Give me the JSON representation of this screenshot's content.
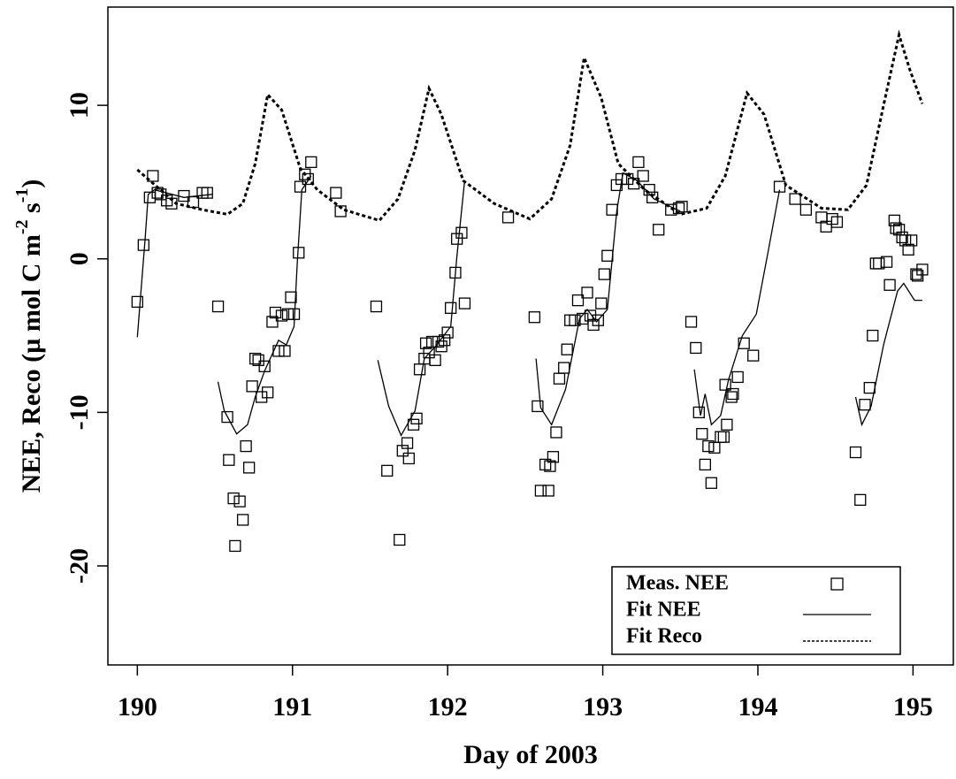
{
  "chart_data": {
    "type": "line",
    "xlabel": "Day of 2003",
    "ylabel": [
      "NEE, Reco (µ mol C m",
      "-2",
      " s",
      "-1",
      ")"
    ],
    "xlim": [
      189.81,
      195.26
    ],
    "ylim": [
      -26.45,
      16.4
    ],
    "xticks": [
      190,
      191,
      192,
      193,
      194,
      195
    ],
    "yticks": [
      -20,
      -10,
      0,
      10
    ],
    "legend": "bottom-right",
    "series": [
      {
        "name": "Meas. NEE",
        "mark": "square",
        "color": "#000000",
        "x": [
          190.0,
          190.04,
          190.08,
          190.1,
          190.13,
          190.15,
          190.19,
          190.22,
          190.3,
          190.36,
          190.42,
          190.45,
          190.52,
          190.58,
          190.59,
          190.62,
          190.63,
          190.66,
          190.68,
          190.7,
          190.72,
          190.74,
          190.76,
          190.78,
          190.8,
          190.82,
          190.84,
          190.87,
          190.89,
          190.91,
          190.93,
          190.95,
          190.97,
          190.99,
          191.01,
          191.04,
          191.05,
          191.08,
          191.1,
          191.12,
          191.28,
          191.31,
          191.54,
          191.61,
          191.69,
          191.71,
          191.74,
          191.75,
          191.78,
          191.8,
          191.82,
          191.85,
          191.86,
          191.88,
          191.9,
          191.92,
          191.94,
          191.96,
          191.98,
          192.0,
          192.02,
          192.05,
          192.06,
          192.09,
          192.11,
          192.39,
          192.56,
          192.58,
          192.6,
          192.63,
          192.65,
          192.66,
          192.68,
          192.7,
          192.72,
          192.75,
          192.77,
          192.79,
          192.82,
          192.84,
          192.87,
          192.9,
          192.92,
          192.94,
          192.97,
          192.99,
          193.01,
          193.03,
          193.06,
          193.09,
          193.12,
          193.16,
          193.2,
          193.23,
          193.26,
          193.3,
          193.32,
          193.36,
          193.44,
          193.49,
          193.51,
          193.57,
          193.6,
          193.62,
          193.64,
          193.66,
          193.68,
          193.7,
          193.72,
          193.76,
          193.78,
          193.79,
          193.8,
          193.83,
          193.84,
          193.87,
          193.91,
          193.97,
          194.14,
          194.24,
          194.31,
          194.41,
          194.44,
          194.48,
          194.51,
          194.63,
          194.66,
          194.69,
          194.72,
          194.74,
          194.76,
          194.78,
          194.83,
          194.85,
          194.88,
          194.89,
          194.91,
          194.93,
          194.95,
          194.97,
          194.99,
          195.02,
          195.03,
          195.06
        ],
        "values": [
          -2.8,
          0.9,
          4.0,
          5.4,
          4.3,
          4.2,
          3.8,
          3.6,
          4.1,
          3.7,
          4.3,
          4.3,
          -3.1,
          -10.3,
          -13.1,
          -15.6,
          -18.7,
          -15.8,
          -17.0,
          -12.2,
          -13.6,
          -8.3,
          -6.5,
          -6.6,
          -9.0,
          -7.0,
          -8.7,
          -4.1,
          -3.5,
          -6.0,
          -3.7,
          -6.0,
          -3.6,
          -2.5,
          -3.6,
          0.4,
          4.7,
          5.5,
          5.2,
          6.3,
          4.3,
          3.1,
          -3.1,
          -13.8,
          -18.3,
          -12.5,
          -12.0,
          -13.0,
          -10.8,
          -10.4,
          -7.2,
          -6.5,
          -5.5,
          -6.1,
          -5.4,
          -6.6,
          -5.4,
          -5.7,
          -5.3,
          -4.8,
          -3.2,
          -0.9,
          1.3,
          1.7,
          -2.9,
          2.7,
          -3.8,
          -9.6,
          -15.1,
          -13.4,
          -15.1,
          -13.5,
          -12.9,
          -11.3,
          -7.8,
          -7.1,
          -5.9,
          -4.0,
          -4.0,
          -2.7,
          -3.9,
          -2.2,
          -3.7,
          -4.3,
          -4.0,
          -2.9,
          -1.0,
          0.2,
          3.2,
          4.8,
          5.2,
          5.2,
          4.9,
          6.3,
          5.4,
          4.5,
          4.0,
          1.9,
          3.2,
          3.3,
          3.4,
          -4.1,
          -5.8,
          -10.0,
          -11.4,
          -13.4,
          -12.2,
          -14.6,
          -12.3,
          -11.6,
          -11.6,
          -8.2,
          -10.8,
          -9.0,
          -8.8,
          -7.7,
          -5.5,
          -6.3,
          4.7,
          3.9,
          3.2,
          2.7,
          2.1,
          2.6,
          2.4,
          -12.6,
          -15.7,
          -9.5,
          -8.4,
          -5.0,
          -0.3,
          -0.3,
          -0.2,
          -1.7,
          2.5,
          2.0,
          1.9,
          1.4,
          1.2,
          0.6,
          1.2,
          -1.0,
          -1.1,
          -0.7
        ]
      },
      {
        "name": "Fit NEE",
        "mark": "solid",
        "color": "#000000",
        "x": [
          190.0,
          190.05,
          190.07,
          190.11,
          190.3,
          190.48,
          null,
          190.52,
          190.56,
          190.64,
          190.71,
          190.76,
          190.82,
          190.91,
          190.96,
          191.01,
          191.03,
          191.06,
          191.12,
          null,
          191.55,
          191.62,
          191.7,
          191.79,
          191.85,
          191.93,
          192.02,
          192.06,
          192.11,
          null,
          192.57,
          192.6,
          192.67,
          192.76,
          192.85,
          192.9,
          192.96,
          193.03,
          193.09,
          193.13,
          193.22,
          193.33,
          193.5,
          null,
          193.59,
          193.63,
          193.66,
          193.7,
          193.76,
          193.81,
          193.9,
          193.99,
          194.07,
          194.14,
          null,
          194.63,
          194.67,
          194.73,
          194.81,
          194.9,
          194.94,
          195.01,
          195.06
        ],
        "values": [
          -5.1,
          1.3,
          4.2,
          4.5,
          4.0,
          4.2,
          null,
          -8.0,
          -9.9,
          -11.4,
          -10.8,
          -9.0,
          -7.3,
          -5.3,
          -5.6,
          -4.4,
          -0.4,
          4.5,
          5.4,
          null,
          -6.6,
          -9.6,
          -11.5,
          -9.9,
          -6.5,
          -5.6,
          -4.4,
          0.2,
          5.1,
          null,
          -6.5,
          -9.7,
          -10.8,
          -8.5,
          -3.9,
          -3.3,
          -4.1,
          -3.3,
          3.1,
          5.6,
          5.1,
          3.9,
          3.1,
          null,
          -7.2,
          -10.2,
          -8.8,
          -10.8,
          -10.2,
          -7.9,
          -5.0,
          -3.6,
          0.7,
          4.5,
          null,
          -9.0,
          -10.8,
          -9.6,
          -5.6,
          -2.1,
          -1.6,
          -2.7,
          -2.7
        ]
      },
      {
        "name": "Fit Reco",
        "mark": "dotted",
        "color": "#000000",
        "x": [
          190.0,
          190.08,
          190.25,
          190.42,
          190.58,
          190.68,
          190.76,
          190.84,
          190.93,
          191.05,
          191.16,
          191.33,
          191.56,
          191.68,
          191.79,
          191.88,
          191.96,
          192.1,
          192.3,
          192.53,
          192.67,
          192.79,
          192.88,
          192.99,
          193.1,
          193.27,
          193.5,
          193.67,
          193.79,
          193.93,
          194.04,
          194.18,
          194.41,
          194.58,
          194.7,
          194.81,
          194.91,
          194.98,
          195.06
        ],
        "values": [
          5.8,
          5.1,
          3.6,
          3.2,
          2.9,
          3.6,
          6.2,
          10.7,
          9.7,
          5.9,
          4.5,
          3.2,
          2.5,
          3.9,
          7.1,
          11.1,
          9.4,
          5.1,
          3.6,
          2.6,
          3.9,
          7.4,
          13.1,
          10.5,
          6.2,
          4.5,
          2.9,
          3.3,
          5.4,
          10.8,
          9.4,
          4.8,
          3.3,
          3.2,
          4.8,
          10.0,
          14.6,
          12.3,
          10.1
        ]
      }
    ]
  }
}
